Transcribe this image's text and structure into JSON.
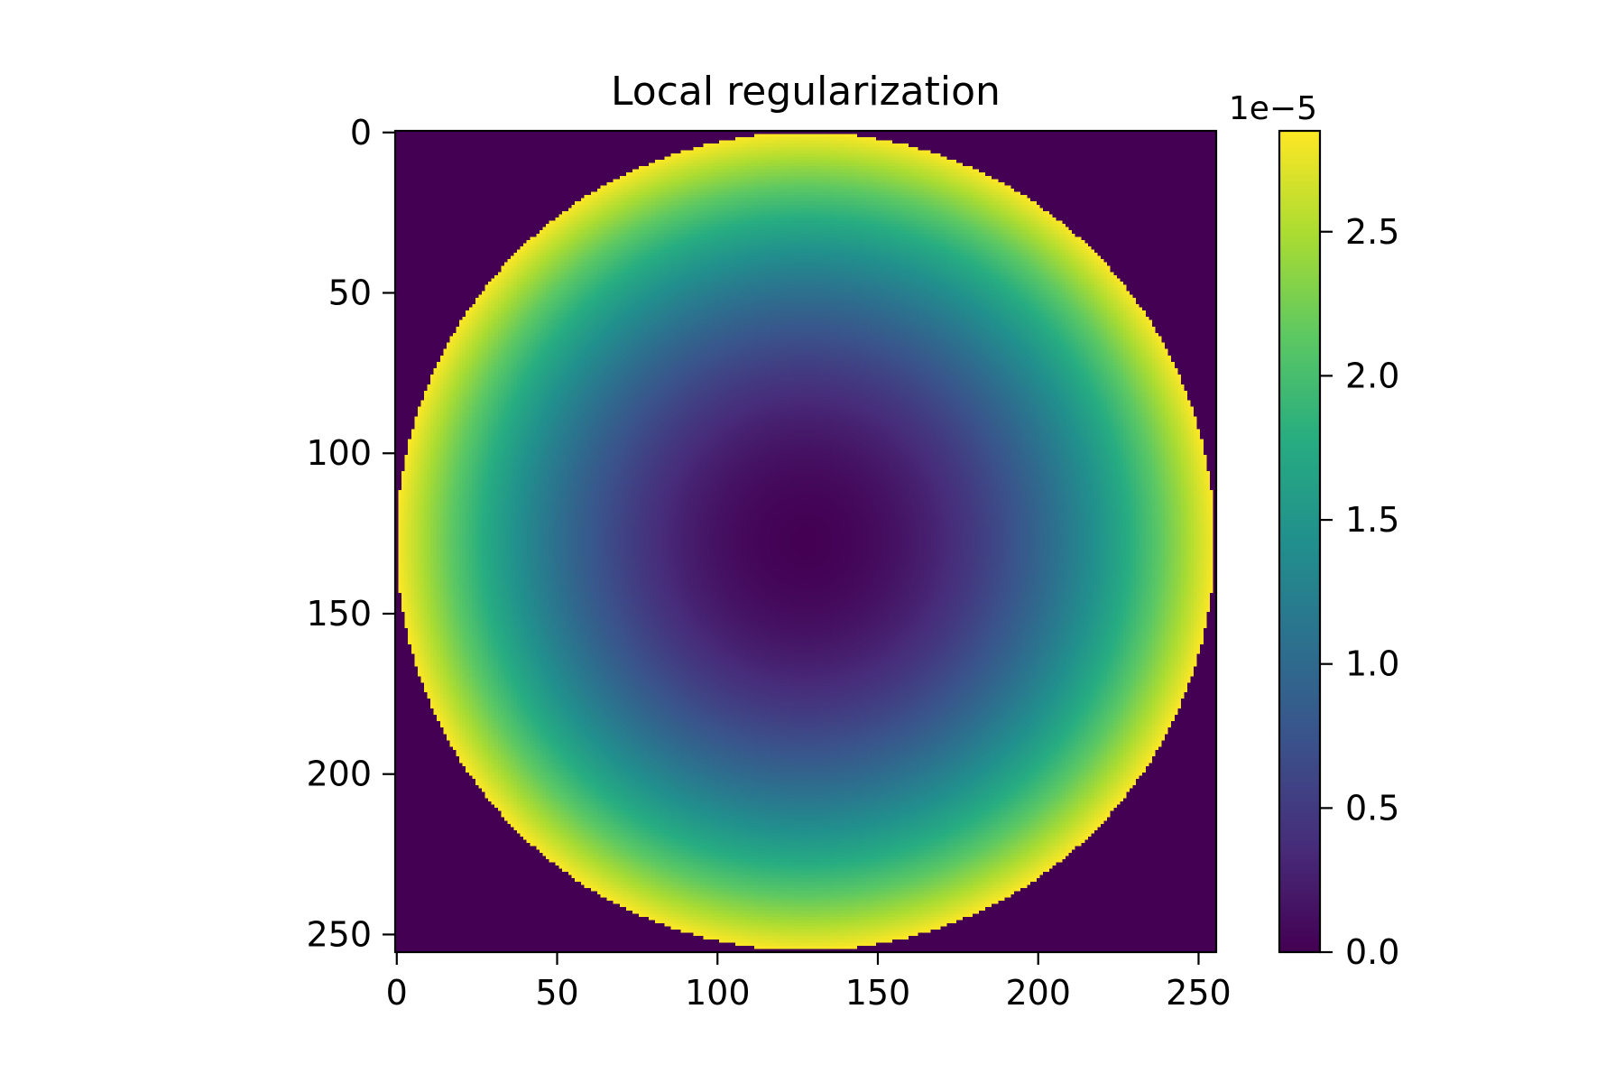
{
  "chart_data": {
    "type": "heatmap",
    "title": "Local regularization",
    "colormap": "viridis",
    "image_size": [
      256,
      256
    ],
    "x_ticks": [
      0,
      50,
      100,
      150,
      200,
      250
    ],
    "y_ticks": [
      0,
      50,
      100,
      150,
      200,
      250
    ],
    "xlim": [
      -0.5,
      255.5
    ],
    "ylim": [
      255.5,
      -0.5
    ],
    "y_axis_inverted": true,
    "disk": {
      "center_x": 127.5,
      "center_y": 127.5,
      "radius": 127.5
    },
    "value_range": [
      0,
      2.85e-05
    ],
    "radial_profile": "value proportional to squared distance from disk center; zero outside the disk",
    "colorbar": {
      "vmin": 0.0,
      "vmax": 2.85,
      "ticks": [
        0.0,
        0.5,
        1.0,
        1.5,
        2.0,
        2.5
      ],
      "tick_labels": [
        "0.0",
        "0.5",
        "1.0",
        "1.5",
        "2.0",
        "2.5"
      ],
      "offset_label": "1e−5",
      "position": "right"
    }
  }
}
